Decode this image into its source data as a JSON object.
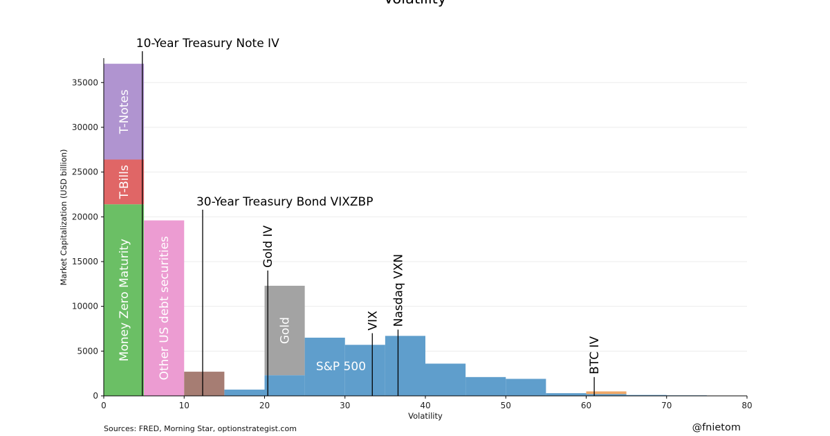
{
  "chart_data": {
    "type": "bar",
    "title": "Volatility",
    "xlabel": "Volatility",
    "ylabel": "Market Capitalization (USD billion)",
    "xlim": [
      0,
      80
    ],
    "ylim": [
      0,
      38500
    ],
    "xticks": [
      0,
      10,
      20,
      30,
      40,
      50,
      60,
      70,
      80
    ],
    "yticks": [
      0,
      5000,
      10000,
      15000,
      20000,
      25000,
      30000,
      35000
    ],
    "grid": "horizontal",
    "colors": {
      "money_zero_maturity": "#6bbf65",
      "t_bills": "#e06666",
      "t_notes": "#b094d0",
      "other_us_debt": "#ec9cd2",
      "brown": "#a67d73",
      "gold": "#a3a3a3",
      "sp500": "#5f9ecc",
      "btc": "#f0a868"
    },
    "bars": [
      {
        "x0": 0,
        "x1": 5,
        "y0": 0,
        "y1": 21400,
        "color_key": "money_zero_maturity",
        "label": "Money Zero Maturity"
      },
      {
        "x0": 0,
        "x1": 5,
        "y0": 21400,
        "y1": 26400,
        "color_key": "t_bills",
        "label": "T-Bills"
      },
      {
        "x0": 0,
        "x1": 5,
        "y0": 26400,
        "y1": 37100,
        "color_key": "t_notes",
        "label": "T-Notes"
      },
      {
        "x0": 5,
        "x1": 10,
        "y0": 0,
        "y1": 19600,
        "color_key": "other_us_debt",
        "label": "Other US debt securities"
      },
      {
        "x0": 10,
        "x1": 15,
        "y0": 0,
        "y1": 2700,
        "color_key": "brown",
        "label": ""
      },
      {
        "x0": 20,
        "x1": 25,
        "y0": 2300,
        "y1": 12300,
        "color_key": "gold",
        "label": "Gold"
      },
      {
        "x0": 15,
        "x1": 20,
        "y0": 0,
        "y1": 700,
        "color_key": "sp500",
        "label": ""
      },
      {
        "x0": 20,
        "x1": 25,
        "y0": 0,
        "y1": 2300,
        "color_key": "sp500",
        "label": ""
      },
      {
        "x0": 25,
        "x1": 30,
        "y0": 0,
        "y1": 6500,
        "color_key": "sp500",
        "label": ""
      },
      {
        "x0": 30,
        "x1": 35,
        "y0": 0,
        "y1": 5700,
        "color_key": "sp500",
        "label": ""
      },
      {
        "x0": 35,
        "x1": 40,
        "y0": 0,
        "y1": 6700,
        "color_key": "sp500",
        "label": ""
      },
      {
        "x0": 40,
        "x1": 45,
        "y0": 0,
        "y1": 3600,
        "color_key": "sp500",
        "label": ""
      },
      {
        "x0": 45,
        "x1": 50,
        "y0": 0,
        "y1": 2100,
        "color_key": "sp500",
        "label": ""
      },
      {
        "x0": 50,
        "x1": 55,
        "y0": 0,
        "y1": 1900,
        "color_key": "sp500",
        "label": ""
      },
      {
        "x0": 55,
        "x1": 60,
        "y0": 0,
        "y1": 300,
        "color_key": "sp500",
        "label": ""
      },
      {
        "x0": 60,
        "x1": 65,
        "y0": 0,
        "y1": 200,
        "color_key": "sp500",
        "label": ""
      },
      {
        "x0": 65,
        "x1": 70,
        "y0": 0,
        "y1": 100,
        "color_key": "sp500",
        "label": ""
      },
      {
        "x0": 70,
        "x1": 75,
        "y0": 0,
        "y1": 60,
        "color_key": "sp500",
        "label": ""
      },
      {
        "x0": 75,
        "x1": 80,
        "y0": 0,
        "y1": 30,
        "color_key": "sp500",
        "label": ""
      },
      {
        "x0": 60,
        "x1": 65,
        "y0": 200,
        "y1": 500,
        "color_key": "btc",
        "label": ""
      }
    ],
    "series_labels": [
      {
        "text": "S&P 500",
        "x": 29.5,
        "y": 2400
      }
    ],
    "annotations": [
      {
        "text": "10-Year Treasury Note IV",
        "x": 4.8,
        "line_top": 38500,
        "orientation": "horizontal"
      },
      {
        "text": "30-Year Treasury Bond VIXZBP",
        "x": 12.3,
        "line_top": 20800,
        "orientation": "horizontal"
      },
      {
        "text": "Gold IV",
        "x": 20.4,
        "line_top": 14000,
        "orientation": "vertical"
      },
      {
        "text": "VIX",
        "x": 33.4,
        "line_top": 7000,
        "orientation": "vertical"
      },
      {
        "text": "Nasdaq VXN",
        "x": 36.6,
        "line_top": 7400,
        "orientation": "vertical"
      },
      {
        "text": "BTC IV",
        "x": 61.0,
        "line_top": 2100,
        "orientation": "vertical"
      }
    ]
  },
  "footer": {
    "sources": "Sources: FRED,  Morning Star, optionstrategist.com",
    "handle": "@fnietom"
  }
}
